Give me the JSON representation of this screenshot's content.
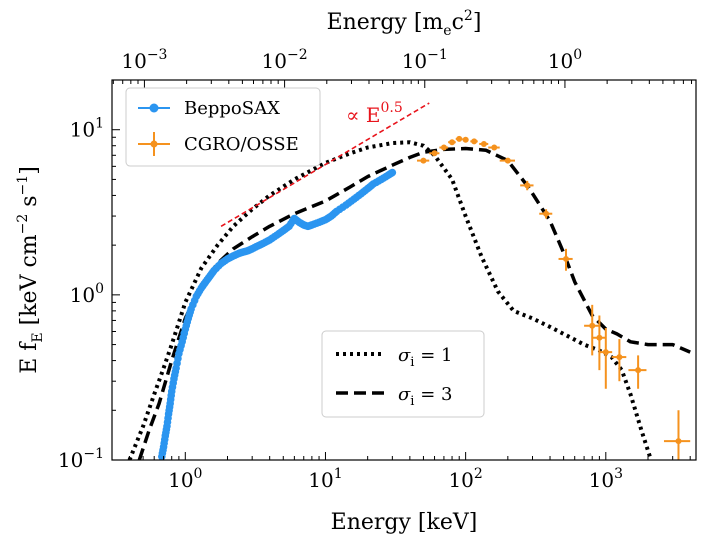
{
  "chart_data": {
    "type": "scatter",
    "title": "",
    "xlabel": "Energy [keV]",
    "ylabel": "E f_E [keV cm^-2 s^-1]",
    "xscale": "log",
    "yscale": "log",
    "xlim": [
      0.3,
      4400
    ],
    "ylim": [
      0.1,
      20
    ],
    "grid": false,
    "top_axis": {
      "label_prefix": "Energy [m",
      "label_sub": "e",
      "label_mid": "c",
      "label_sup": "2",
      "label_suffix": "]",
      "ticks": [
        {
          "value": 0.001,
          "base": "10",
          "exp": "−3"
        },
        {
          "value": 0.01,
          "base": "10",
          "exp": "−2"
        },
        {
          "value": 0.1,
          "base": "10",
          "exp": "−1"
        },
        {
          "value": 1,
          "base": "10",
          "exp": "0"
        }
      ],
      "keV_per_unit": 511
    },
    "x_ticks": [
      {
        "value": 1,
        "base": "10",
        "exp": "0"
      },
      {
        "value": 10,
        "base": "10",
        "exp": "1"
      },
      {
        "value": 100,
        "base": "10",
        "exp": "2"
      },
      {
        "value": 1000,
        "base": "10",
        "exp": "3"
      }
    ],
    "y_ticks": [
      {
        "value": 0.1,
        "base": "10",
        "exp": "−1"
      },
      {
        "value": 1,
        "base": "10",
        "exp": "0"
      },
      {
        "value": 10,
        "base": "10",
        "exp": "1"
      }
    ],
    "ylabel_parts": {
      "pre": "E f",
      "sub": "E",
      "mid1": " [keV cm",
      "sup1": "−2",
      "mid2": " s",
      "sup2": "−1",
      "post": "]"
    },
    "annotation": {
      "text_pre": "∝ E",
      "text_sup": "0.5",
      "color": "#e8141c",
      "line": [
        [
          1.8,
          2.6
        ],
        [
          55,
          14.5
        ]
      ]
    },
    "legend_top": {
      "placement": "top-left",
      "entries": [
        {
          "label": "BeppoSAX",
          "color": "#2b95f0",
          "marker": "circle"
        },
        {
          "label": "CGRO/OSSE",
          "color": "#f5921e",
          "marker": "errorbar"
        }
      ]
    },
    "legend_bottom": {
      "placement": "lower-right",
      "entries": [
        {
          "label_var": "σ",
          "label_sub": "i",
          "label_rest": " = 1",
          "style": "dotted",
          "color": "#000000"
        },
        {
          "label_var": "σ",
          "label_sub": "i",
          "label_rest": " = 3",
          "style": "dashed",
          "color": "#000000"
        }
      ]
    },
    "series": [
      {
        "name": "BeppoSAX",
        "color": "#2b95f0",
        "x": [
          0.68,
          0.7,
          0.72,
          0.74,
          0.76,
          0.78,
          0.8,
          0.83,
          0.86,
          0.9,
          0.95,
          1.0,
          1.05,
          1.1,
          1.2,
          1.3,
          1.4,
          1.5,
          1.6,
          1.8,
          2.0,
          2.2,
          2.4,
          2.6,
          2.8,
          3.0,
          3.3,
          3.6,
          4.0,
          4.5,
          5.0,
          5.5,
          6.0,
          6.5,
          7.0,
          7.5,
          8.0,
          9.0,
          10.0,
          11.0,
          12.0,
          14.0,
          16.0,
          18.0,
          20.0,
          22.0,
          25.0,
          28.0,
          30.0
        ],
        "y": [
          0.105,
          0.12,
          0.14,
          0.16,
          0.19,
          0.22,
          0.26,
          0.31,
          0.36,
          0.44,
          0.52,
          0.62,
          0.72,
          0.82,
          0.98,
          1.1,
          1.2,
          1.3,
          1.4,
          1.55,
          1.65,
          1.72,
          1.78,
          1.82,
          1.85,
          1.9,
          1.98,
          2.05,
          2.15,
          2.3,
          2.45,
          2.6,
          2.9,
          2.75,
          2.65,
          2.6,
          2.65,
          2.75,
          2.85,
          3.0,
          3.2,
          3.5,
          3.8,
          4.1,
          4.4,
          4.7,
          5.0,
          5.3,
          5.5
        ]
      },
      {
        "name": "CGRO/OSSE",
        "color": "#f5921e",
        "x": [
          50,
          60,
          70,
          80,
          90,
          100,
          115,
          135,
          160,
          200,
          275,
          375,
          520,
          800,
          900,
          1000,
          1250,
          1700,
          3300
        ],
        "y": [
          6.5,
          7.2,
          7.8,
          8.4,
          8.8,
          8.7,
          8.5,
          8.2,
          7.8,
          6.5,
          4.6,
          3.1,
          1.65,
          0.65,
          0.55,
          0.45,
          0.42,
          0.35,
          0.13
        ],
        "xerr": [
          5,
          5,
          5,
          5,
          5,
          5,
          7,
          10,
          15,
          25,
          30,
          40,
          60,
          100,
          110,
          110,
          150,
          250,
          700
        ],
        "yerr": [
          0.15,
          0.15,
          0.15,
          0.15,
          0.15,
          0.15,
          0.15,
          0.15,
          0.15,
          0.2,
          0.3,
          0.2,
          0.25,
          0.22,
          0.2,
          0.18,
          0.12,
          0.08,
          0.07
        ]
      },
      {
        "name": "σi = 1",
        "style": "dotted",
        "x": [
          0.4,
          0.5,
          0.6,
          0.7,
          0.8,
          1.0,
          1.3,
          1.7,
          2.2,
          3.0,
          4.0,
          6.0,
          10,
          15,
          20,
          30,
          40,
          50,
          60,
          80,
          100,
          130,
          170,
          220,
          300,
          400,
          500,
          700,
          900,
          1100,
          1300,
          1500,
          1800,
          2100
        ],
        "y": [
          0.1,
          0.16,
          0.25,
          0.36,
          0.5,
          0.9,
          1.45,
          2.0,
          2.6,
          3.3,
          4.0,
          5.0,
          6.3,
          7.2,
          7.8,
          8.3,
          8.4,
          8.0,
          7.0,
          5.0,
          3.0,
          1.7,
          1.05,
          0.8,
          0.72,
          0.64,
          0.58,
          0.5,
          0.46,
          0.42,
          0.35,
          0.25,
          0.15,
          0.1
        ]
      },
      {
        "name": "σi = 3",
        "style": "dashed",
        "x": [
          0.47,
          0.55,
          0.65,
          0.8,
          1.0,
          1.3,
          1.7,
          2.2,
          3.0,
          4.0,
          6.0,
          10,
          15,
          20,
          30,
          40,
          50,
          70,
          100,
          140,
          200,
          280,
          400,
          500,
          600,
          800,
          1000,
          1200,
          1500,
          2000,
          2500,
          3000,
          4000
        ],
        "y": [
          0.1,
          0.15,
          0.22,
          0.4,
          0.72,
          1.15,
          1.55,
          1.9,
          2.25,
          2.6,
          3.1,
          3.7,
          4.5,
          5.2,
          6.1,
          6.8,
          7.3,
          7.6,
          7.7,
          7.5,
          6.5,
          4.5,
          2.8,
          1.8,
          1.2,
          0.75,
          0.62,
          0.58,
          0.52,
          0.5,
          0.5,
          0.5,
          0.45
        ]
      }
    ]
  }
}
